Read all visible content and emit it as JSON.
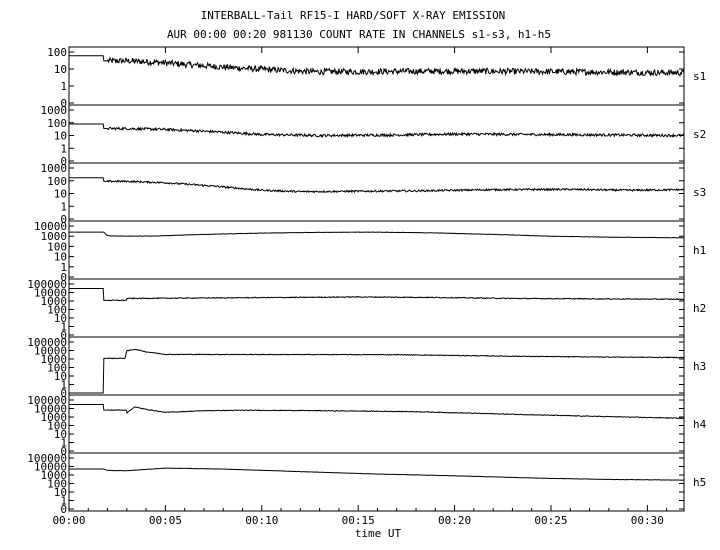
{
  "chart_data": {
    "type": "line",
    "title": "INTERBALL-Tail RF15-I HARD/SOFT X-RAY EMISSION",
    "subtitle": "AUR 00:00 00:20 981130  COUNT RATE IN CHANNELS s1-s3, h1-h5",
    "xlabel": "time UT",
    "x_tick_labels": [
      "00:00",
      "00:05",
      "00:10",
      "00:15",
      "00:20",
      "00:25",
      "00:30"
    ],
    "x_tick_minutes": [
      0,
      5,
      10,
      15,
      20,
      25,
      30
    ],
    "xlim_minutes": [
      0,
      31.9
    ],
    "y_scale": "log",
    "panels": [
      {
        "name": "s1",
        "y_tick_labels": [
          "100",
          "10",
          "1",
          "0"
        ],
        "ylim": [
          0,
          100
        ],
        "noise": 0.18,
        "points": [
          [
            0,
            60
          ],
          [
            1.8,
            60
          ],
          [
            1.8,
            30
          ],
          [
            3.0,
            30
          ],
          [
            4.5,
            25
          ],
          [
            6.5,
            17
          ],
          [
            8.5,
            12
          ],
          [
            10.5,
            9
          ],
          [
            12.5,
            7
          ],
          [
            15,
            7
          ],
          [
            20,
            7.5
          ],
          [
            25,
            7
          ],
          [
            31.9,
            6
          ]
        ]
      },
      {
        "name": "s2",
        "y_tick_labels": [
          "1000",
          "100",
          "10",
          "1",
          "0"
        ],
        "ylim": [
          0,
          1000
        ],
        "noise": 0.1,
        "points": [
          [
            0,
            80
          ],
          [
            1.8,
            80
          ],
          [
            1.8,
            35
          ],
          [
            3.0,
            35
          ],
          [
            5,
            30
          ],
          [
            7.5,
            20
          ],
          [
            10,
            12
          ],
          [
            13,
            10
          ],
          [
            17,
            11
          ],
          [
            20,
            13
          ],
          [
            24,
            12
          ],
          [
            28,
            11
          ],
          [
            31.9,
            10
          ]
        ]
      },
      {
        "name": "s3",
        "y_tick_labels": [
          "1000",
          "100",
          "10",
          "1",
          "0"
        ],
        "ylim": [
          0,
          1000
        ],
        "noise": 0.07,
        "points": [
          [
            0,
            170
          ],
          [
            1.8,
            170
          ],
          [
            1.8,
            90
          ],
          [
            3.0,
            90
          ],
          [
            5,
            70
          ],
          [
            7.5,
            38
          ],
          [
            10,
            18
          ],
          [
            12,
            14
          ],
          [
            15,
            15
          ],
          [
            18,
            16
          ],
          [
            22,
            20
          ],
          [
            26,
            21
          ],
          [
            29,
            18
          ],
          [
            31.9,
            20
          ]
        ]
      },
      {
        "name": "h1",
        "y_tick_labels": [
          "10000",
          "1000",
          "100",
          "10",
          "1",
          "0"
        ],
        "ylim": [
          0,
          10000
        ],
        "noise": 0.02,
        "points": [
          [
            0,
            2500
          ],
          [
            1.8,
            2500
          ],
          [
            2.0,
            1100
          ],
          [
            3,
            1000
          ],
          [
            4.5,
            1050
          ],
          [
            7,
            1500
          ],
          [
            10,
            2000
          ],
          [
            13,
            2400
          ],
          [
            16,
            2500
          ],
          [
            19,
            2100
          ],
          [
            22,
            1500
          ],
          [
            25,
            1000
          ],
          [
            28,
            800
          ],
          [
            31.9,
            700
          ]
        ]
      },
      {
        "name": "h2",
        "y_tick_labels": [
          "100000",
          "10000",
          "1000",
          "100",
          "10",
          "1",
          "0"
        ],
        "ylim": [
          0,
          100000
        ],
        "noise": 0.05,
        "points": [
          [
            0,
            30000
          ],
          [
            1.8,
            30000
          ],
          [
            1.8,
            1200
          ],
          [
            3.0,
            1200
          ],
          [
            3.0,
            2000
          ],
          [
            6,
            2200
          ],
          [
            10,
            2500
          ],
          [
            15,
            3000
          ],
          [
            19,
            2600
          ],
          [
            23,
            2000
          ],
          [
            27,
            1800
          ],
          [
            31.9,
            1600
          ]
        ]
      },
      {
        "name": "h3",
        "y_tick_labels": [
          "100000",
          "10000",
          "1000",
          "100",
          "10",
          "1",
          "0"
        ],
        "ylim": [
          0,
          100000
        ],
        "noise": 0.04,
        "points": [
          [
            0,
            0
          ],
          [
            1.8,
            0
          ],
          [
            1.8,
            1200
          ],
          [
            2.9,
            1200
          ],
          [
            3.0,
            9000
          ],
          [
            3.4,
            14000
          ],
          [
            4.0,
            7000
          ],
          [
            5,
            3500
          ],
          [
            8,
            3400
          ],
          [
            13,
            3300
          ],
          [
            17,
            3200
          ],
          [
            20,
            2600
          ],
          [
            24,
            2000
          ],
          [
            28,
            1700
          ],
          [
            31.9,
            1500
          ]
        ]
      },
      {
        "name": "h4",
        "y_tick_labels": [
          "100000",
          "10000",
          "1000",
          "100",
          "10",
          "1",
          "0"
        ],
        "ylim": [
          0,
          100000
        ],
        "noise": 0.04,
        "points": [
          [
            0,
            30000
          ],
          [
            1.8,
            30000
          ],
          [
            1.8,
            6500
          ],
          [
            3.0,
            6500
          ],
          [
            3.0,
            3000
          ],
          [
            3.4,
            15000
          ],
          [
            4.0,
            8000
          ],
          [
            5,
            3500
          ],
          [
            7,
            5500
          ],
          [
            9,
            6200
          ],
          [
            12,
            5800
          ],
          [
            15,
            5000
          ],
          [
            18,
            4200
          ],
          [
            22,
            2400
          ],
          [
            26,
            1400
          ],
          [
            31.9,
            700
          ]
        ]
      },
      {
        "name": "h5",
        "y_tick_labels": [
          "100000",
          "10000",
          "1000",
          "100",
          "10",
          "1",
          "0"
        ],
        "ylim": [
          0,
          100000
        ],
        "noise": 0.02,
        "points": [
          [
            0,
            5000
          ],
          [
            1.8,
            5000
          ],
          [
            2.0,
            3500
          ],
          [
            3,
            3200
          ],
          [
            5,
            6500
          ],
          [
            8,
            5000
          ],
          [
            12,
            2500
          ],
          [
            16,
            1300
          ],
          [
            20,
            800
          ],
          [
            24,
            450
          ],
          [
            28,
            300
          ],
          [
            31.9,
            250
          ]
        ]
      }
    ]
  }
}
